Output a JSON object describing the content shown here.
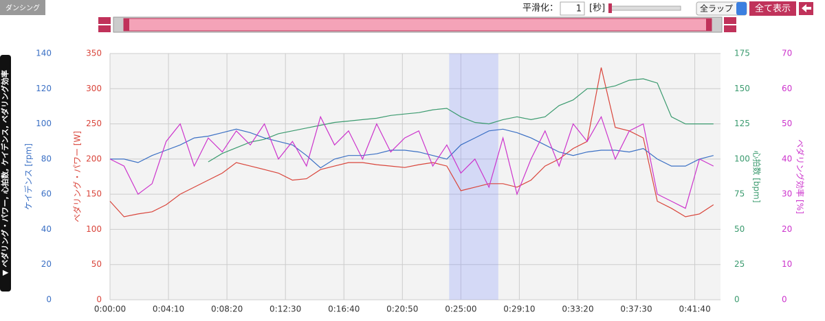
{
  "ui": {
    "logo": "ダンシング",
    "smoothing_label": "平滑化：",
    "smoothing_value": "1",
    "smoothing_unit": "[秒]",
    "lap_select": "全ラップ",
    "show_all": "全て表示",
    "panel_label": "▼ ペダリング・パワー, 心拍数, ケイデンス, ペダリング効率"
  },
  "chart_data": {
    "type": "line",
    "x": [
      0,
      60,
      120,
      180,
      240,
      300,
      360,
      420,
      480,
      540,
      600,
      660,
      720,
      780,
      840,
      900,
      960,
      1020,
      1080,
      1140,
      1200,
      1260,
      1320,
      1380,
      1440,
      1500,
      1560,
      1620,
      1680,
      1740,
      1800,
      1860,
      1920,
      1980,
      2040,
      2100,
      2160,
      2220,
      2280,
      2340,
      2400,
      2460,
      2520,
      2580
    ],
    "xlim": [
      0,
      2610
    ],
    "xticks": [
      {
        "value": 0,
        "label": "0:00:00"
      },
      {
        "value": 250,
        "label": "0:04:10"
      },
      {
        "value": 500,
        "label": "0:08:20"
      },
      {
        "value": 750,
        "label": "0:12:30"
      },
      {
        "value": 1000,
        "label": "0:16:40"
      },
      {
        "value": 1250,
        "label": "0:20:50"
      },
      {
        "value": 1500,
        "label": "0:25:00"
      },
      {
        "value": 1750,
        "label": "0:29:10"
      },
      {
        "value": 2000,
        "label": "0:33:20"
      },
      {
        "value": 2250,
        "label": "0:37:30"
      },
      {
        "value": 2500,
        "label": "0:41:40"
      }
    ],
    "selection": [
      1450,
      1660
    ],
    "grid": true,
    "axes": [
      {
        "label": "ケイデンス [rpm]",
        "color": "#3a6fc4",
        "ylim": [
          0,
          140
        ],
        "yticks": [
          0,
          20,
          40,
          60,
          80,
          100,
          120,
          140
        ]
      },
      {
        "label": "ペダリング・パワー [W]",
        "color": "#d9443a",
        "ylim": [
          0,
          350
        ],
        "yticks": [
          0,
          50,
          100,
          150,
          200,
          250,
          300,
          350
        ]
      },
      {
        "label": "心拍数 [bpm]",
        "color": "#3a9a6e",
        "ylim": [
          0,
          175
        ],
        "yticks": [
          0,
          25,
          50,
          75,
          100,
          125,
          150,
          175
        ]
      },
      {
        "label": "ペダリング効率 [%]",
        "color": "#cc33cc",
        "ylim": [
          0,
          70
        ],
        "yticks": [
          0,
          10,
          20,
          30,
          40,
          50,
          60,
          70
        ]
      }
    ],
    "series": [
      {
        "axis": 1,
        "values": [
          140,
          118,
          122,
          125,
          135,
          150,
          160,
          170,
          180,
          195,
          190,
          185,
          180,
          170,
          172,
          185,
          190,
          195,
          195,
          192,
          190,
          188,
          192,
          195,
          190,
          155,
          160,
          165,
          165,
          160,
          170,
          190,
          200,
          215,
          225,
          330,
          245,
          240,
          230,
          140,
          130,
          118,
          122,
          135
        ]
      },
      {
        "axis": 2,
        "values": [
          null,
          null,
          null,
          null,
          null,
          null,
          null,
          98,
          104,
          108,
          112,
          114,
          118,
          120,
          122,
          124,
          126,
          127,
          128,
          129,
          131,
          132,
          133,
          135,
          136,
          130,
          126,
          125,
          128,
          130,
          128,
          130,
          138,
          142,
          150,
          150,
          152,
          156,
          157,
          154,
          130,
          125,
          125,
          125
        ]
      },
      {
        "axis": 0,
        "values": [
          80,
          80,
          78,
          82,
          85,
          88,
          92,
          93,
          95,
          97,
          95,
          92,
          90,
          88,
          82,
          75,
          80,
          82,
          82,
          83,
          85,
          85,
          84,
          82,
          80,
          88,
          92,
          96,
          97,
          95,
          92,
          88,
          84,
          82,
          84,
          85,
          85,
          84,
          86,
          80,
          76,
          76,
          80,
          82
        ]
      },
      {
        "axis": 3,
        "values": [
          40,
          38,
          30,
          33,
          45,
          50,
          38,
          46,
          42,
          48,
          44,
          50,
          40,
          45,
          38,
          52,
          44,
          48,
          40,
          50,
          42,
          46,
          48,
          38,
          44,
          36,
          40,
          32,
          46,
          30,
          40,
          48,
          38,
          50,
          45,
          52,
          40,
          48,
          50,
          30,
          28,
          26,
          40,
          38
        ]
      }
    ]
  }
}
